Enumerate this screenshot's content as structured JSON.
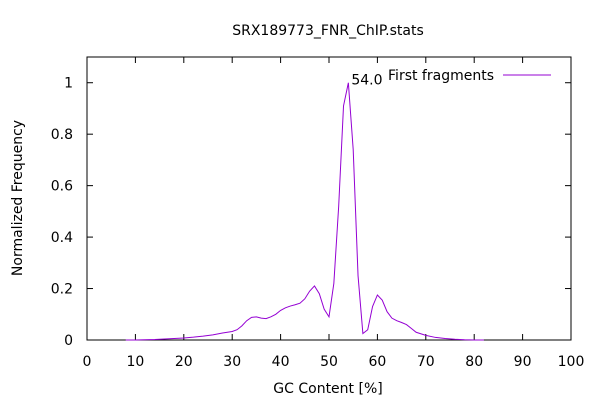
{
  "chart_data": {
    "type": "line",
    "title": "SRX189773_FNR_ChIP.stats",
    "xlabel": "GC Content [%]",
    "ylabel": "Normalized Frequency",
    "xlim": [
      0,
      100
    ],
    "ylim": [
      0,
      1.1
    ],
    "x_ticks": [
      0,
      10,
      20,
      30,
      40,
      50,
      60,
      70,
      80,
      90,
      100
    ],
    "y_ticks": [
      0,
      0.2,
      0.4,
      0.6,
      0.8,
      1
    ],
    "x_tick_labels": [
      "0",
      "10",
      "20",
      "30",
      "40",
      "50",
      "60",
      "70",
      "80",
      "90",
      "100"
    ],
    "y_tick_labels": [
      "0",
      "0.2",
      "0.4",
      "0.6",
      "0.8",
      "1"
    ],
    "grid": false,
    "legend_position": "top-right",
    "annotation": {
      "text": "54.0",
      "x": 54,
      "y": 1.0
    },
    "series": [
      {
        "name": "First fragments",
        "color": "#9400d3",
        "x": [
          8,
          10,
          12,
          14,
          16,
          18,
          20,
          22,
          24,
          26,
          28,
          30,
          31,
          32,
          33,
          34,
          35,
          36,
          37,
          38,
          39,
          40,
          41,
          42,
          43,
          44,
          45,
          46,
          47,
          48,
          49,
          50,
          51,
          52,
          53,
          54,
          55,
          56,
          57,
          58,
          59,
          60,
          61,
          62,
          63,
          64,
          65,
          66,
          67,
          68,
          70,
          72,
          74,
          76,
          78,
          80,
          82
        ],
        "y": [
          0,
          0,
          0.001,
          0.002,
          0.004,
          0.006,
          0.008,
          0.011,
          0.015,
          0.02,
          0.027,
          0.033,
          0.04,
          0.055,
          0.075,
          0.088,
          0.09,
          0.085,
          0.083,
          0.09,
          0.1,
          0.115,
          0.125,
          0.132,
          0.137,
          0.143,
          0.16,
          0.19,
          0.21,
          0.18,
          0.12,
          0.09,
          0.22,
          0.52,
          0.91,
          1.0,
          0.74,
          0.25,
          0.025,
          0.04,
          0.13,
          0.175,
          0.155,
          0.11,
          0.085,
          0.075,
          0.068,
          0.06,
          0.045,
          0.03,
          0.018,
          0.01,
          0.006,
          0.003,
          0.001,
          0,
          0
        ]
      }
    ]
  }
}
